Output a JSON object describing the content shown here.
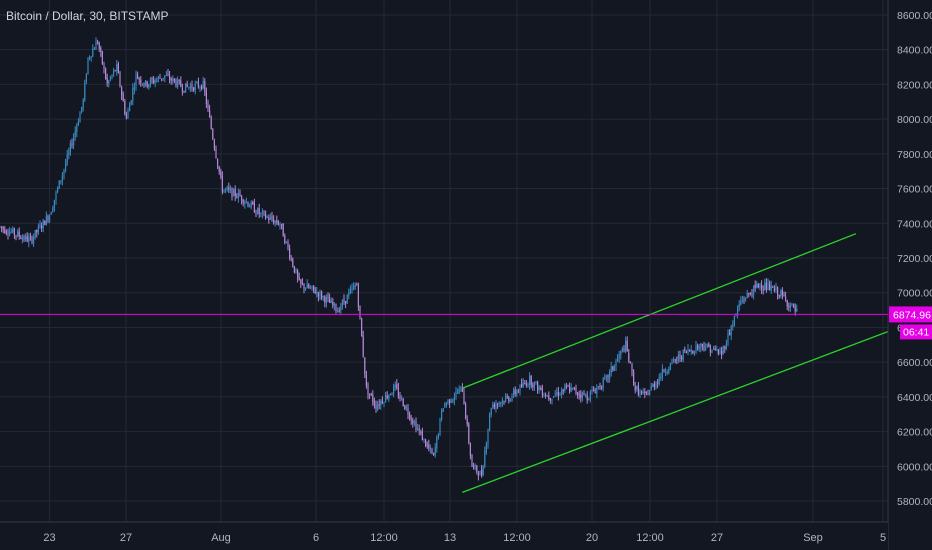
{
  "header": {
    "symbol": "Bitcoin / Dollar, 30, BITSTAMP"
  },
  "price_scale": {
    "ticks": [
      "8600.00",
      "8400.00",
      "8200.00",
      "8000.00",
      "7800.00",
      "7600.00",
      "7400.00",
      "7200.00",
      "7000.00",
      "6800.00",
      "6600.00",
      "6400.00",
      "6200.00",
      "6000.00",
      "5800.00"
    ],
    "last_price": "6874.96",
    "countdown": "06:41"
  },
  "time_scale": {
    "labels": [
      "23",
      "27",
      "Aug",
      "6",
      "12:00",
      "13",
      "12:00",
      "20",
      "12:00",
      "27",
      "Sep",
      "5"
    ]
  },
  "colors": {
    "background": "#131722",
    "grid": "#242833",
    "candle_up": "#3a88c0",
    "candle_down": "#b388d6",
    "channel": "#2ad42a",
    "price_line": "#e600e6",
    "text": "#b2b5be"
  },
  "chart_data": {
    "type": "candlestick",
    "title": "Bitcoin / Dollar, 30, BITSTAMP",
    "ylim": [
      5760,
      8640
    ],
    "y_ticks": [
      8600,
      8400,
      8200,
      8000,
      7800,
      7600,
      7400,
      7200,
      7000,
      6800,
      6600,
      6400,
      6200,
      6000,
      5800
    ],
    "x_ticks": [
      "23",
      "27",
      "Aug",
      "6",
      "12:00",
      "13",
      "12:00",
      "20",
      "12:00",
      "27",
      "Sep",
      "5"
    ],
    "last_price": 6874.96,
    "price_path": [
      [
        "Jul 20",
        7400
      ],
      [
        "Jul 22",
        7300
      ],
      [
        "Jul 23",
        7450
      ],
      [
        "Jul 24",
        7800
      ],
      [
        "Jul 24 18:00",
        8100
      ],
      [
        "Jul 25",
        8350
      ],
      [
        "Jul 25 12:00",
        8450
      ],
      [
        "Jul 26",
        8200
      ],
      [
        "Jul 26 12:00",
        8300
      ],
      [
        "Jul 27",
        8000
      ],
      [
        "Jul 27 12:00",
        8250
      ],
      [
        "Jul 28",
        8200
      ],
      [
        "Jul 29",
        8250
      ],
      [
        "Jul 30",
        8180
      ],
      [
        "Jul 31",
        8200
      ],
      [
        "Aug 1",
        7600
      ],
      [
        "Aug 2",
        7550
      ],
      [
        "Aug 3",
        7450
      ],
      [
        "Aug 4",
        7400
      ],
      [
        "Aug 5",
        7050
      ],
      [
        "Aug 6",
        7000
      ],
      [
        "Aug 7",
        6900
      ],
      [
        "Aug 8",
        7050
      ],
      [
        "Aug 8 12:00",
        6450
      ],
      [
        "Aug 9",
        6350
      ],
      [
        "Aug 10",
        6450
      ],
      [
        "Aug 11",
        6250
      ],
      [
        "Aug 12",
        6050
      ],
      [
        "Aug 12 12:00",
        6350
      ],
      [
        "Aug 13",
        6400
      ],
      [
        "Aug 13 12:00",
        6450
      ],
      [
        "Aug 14",
        6000
      ],
      [
        "Aug 14 12:00",
        5950
      ],
      [
        "Aug 15",
        6350
      ],
      [
        "Aug 16",
        6400
      ],
      [
        "Aug 17",
        6500
      ],
      [
        "Aug 18",
        6400
      ],
      [
        "Aug 19",
        6450
      ],
      [
        "Aug 20",
        6400
      ],
      [
        "Aug 21",
        6500
      ],
      [
        "Aug 22",
        6700
      ],
      [
        "Aug 22 12:00",
        6450
      ],
      [
        "Aug 23",
        6400
      ],
      [
        "Aug 24",
        6550
      ],
      [
        "Aug 25",
        6650
      ],
      [
        "Aug 26",
        6700
      ],
      [
        "Aug 27",
        6650
      ],
      [
        "Aug 28",
        6950
      ],
      [
        "Aug 29",
        7050
      ],
      [
        "Aug 30",
        7000
      ],
      [
        "Aug 31",
        6875
      ]
    ],
    "annotations": [
      {
        "type": "trendline",
        "name": "channel-upper",
        "from": [
          "Aug 13 12:00",
          6450
        ],
        "to": [
          "Sep 3",
          7340
        ]
      },
      {
        "type": "trendline",
        "name": "channel-lower",
        "from": [
          "Aug 13 12:00",
          5850
        ],
        "to": [
          "Sep 5",
          6790
        ]
      },
      {
        "type": "hline",
        "name": "last-price-line",
        "y": 6874.96
      }
    ]
  }
}
